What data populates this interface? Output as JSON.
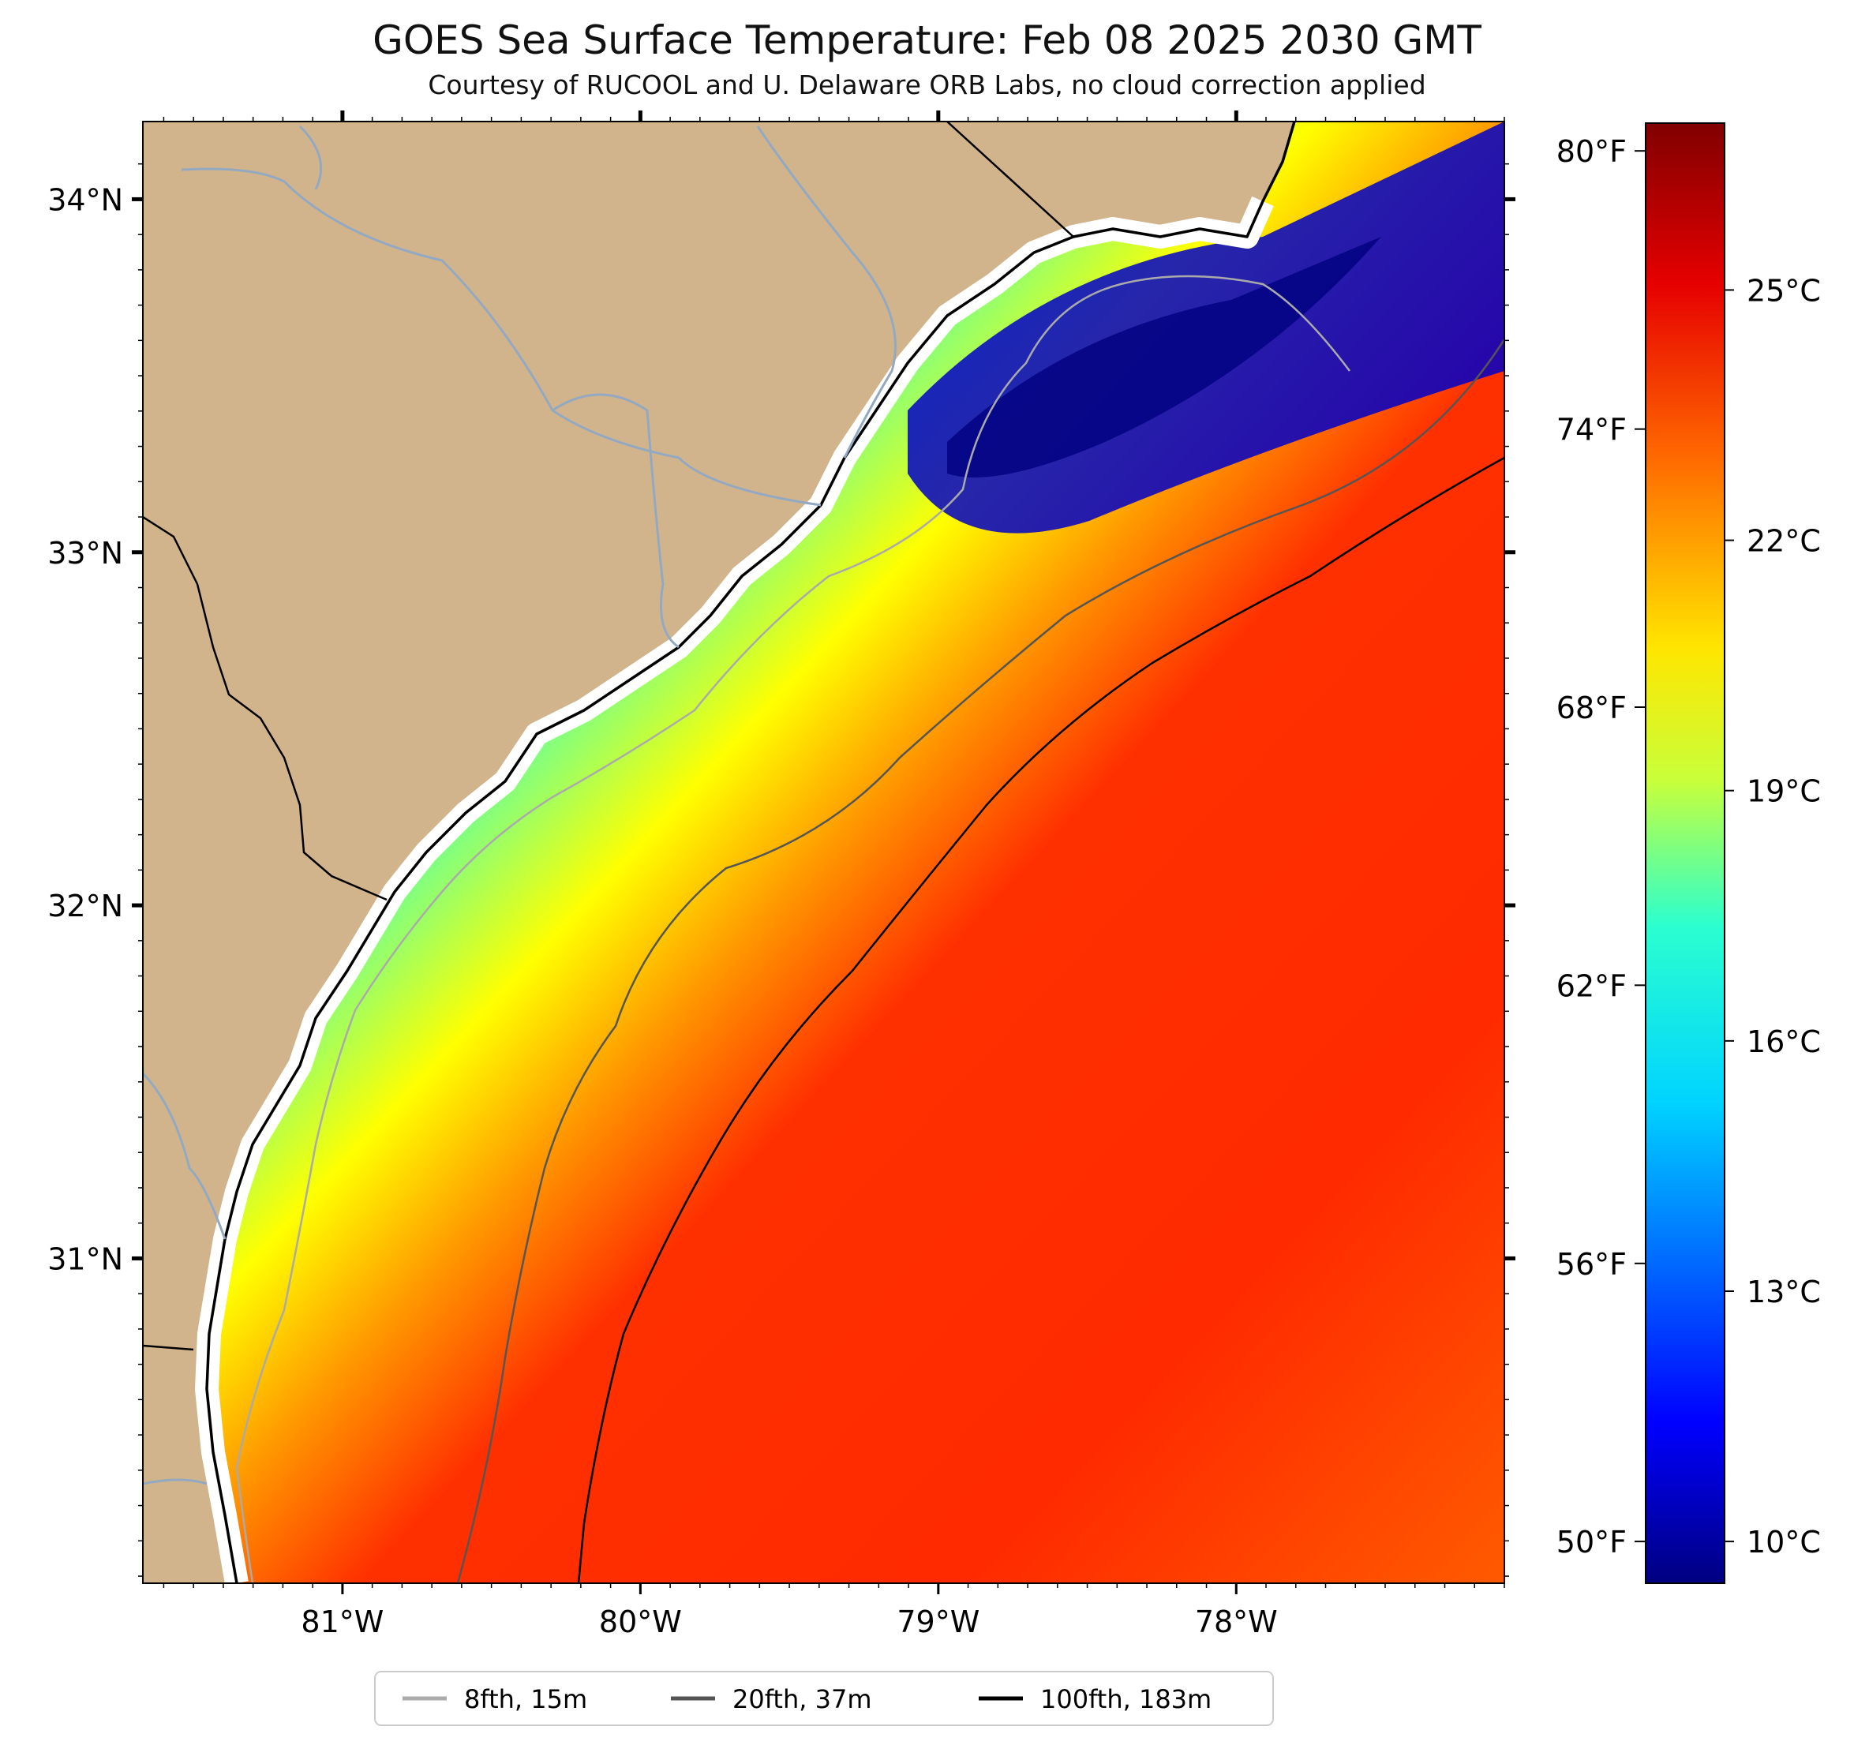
{
  "title": "GOES Sea Surface Temperature: Feb 08 2025 2030 GMT",
  "subtitle": "Courtesy of RUCOOL and U. Delaware ORB Labs, no cloud correction applied",
  "map": {
    "lon_range": [
      -81.67,
      -77.1
    ],
    "lat_range": [
      30.08,
      34.22
    ],
    "x_ticks": [
      {
        "value": -81,
        "label": "81°W"
      },
      {
        "value": -80,
        "label": "80°W"
      },
      {
        "value": -79,
        "label": "79°W"
      },
      {
        "value": -78,
        "label": "78°W"
      }
    ],
    "y_ticks": [
      {
        "value": 34,
        "label": "34°N"
      },
      {
        "value": 33,
        "label": "33°N"
      },
      {
        "value": 32,
        "label": "32°N"
      },
      {
        "value": 31,
        "label": "31°N"
      }
    ],
    "colors": {
      "land": "#d2b48c",
      "coast_gap": "#ffffff",
      "river": "#93a9c2",
      "coastline": "#000000",
      "iso_8fth": "#aaaaaa",
      "iso_20fth": "#555555",
      "iso_100fth": "#000000"
    }
  },
  "colorbar": {
    "range_c": [
      9.5,
      27.0
    ],
    "celsius_ticks": [
      {
        "value": 10,
        "label": "10°C"
      },
      {
        "value": 13,
        "label": "13°C"
      },
      {
        "value": 16,
        "label": "16°C"
      },
      {
        "value": 19,
        "label": "19°C"
      },
      {
        "value": 22,
        "label": "22°C"
      },
      {
        "value": 25,
        "label": "25°C"
      }
    ],
    "fahrenheit_ticks": [
      {
        "value_c": 10.0,
        "label": "50°F"
      },
      {
        "value_c": 13.333,
        "label": "56°F"
      },
      {
        "value_c": 16.667,
        "label": "62°F"
      },
      {
        "value_c": 20.0,
        "label": "68°F"
      },
      {
        "value_c": 23.333,
        "label": "74°F"
      },
      {
        "value_c": 26.667,
        "label": "80°F"
      }
    ],
    "colors": [
      "#000080",
      "#0000ff",
      "#0080ff",
      "#00e5ff",
      "#40ff80",
      "#c0ff40",
      "#ffff00",
      "#ffa000",
      "#ff4000",
      "#e00000",
      "#800000"
    ]
  },
  "legend": {
    "items": [
      {
        "label": "8fth, 15m",
        "color": "#aaaaaa"
      },
      {
        "label": "20fth, 37m",
        "color": "#555555"
      },
      {
        "label": "100fth, 183m",
        "color": "#000000"
      }
    ]
  }
}
